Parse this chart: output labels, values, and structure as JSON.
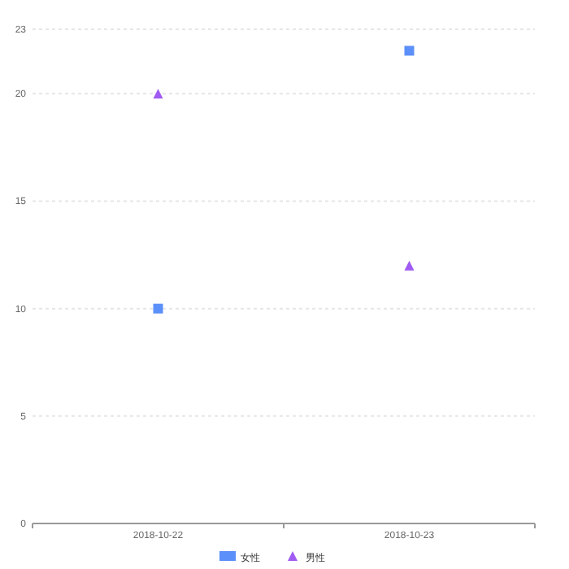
{
  "chart_data": {
    "type": "scatter",
    "categories": [
      "2018-10-22",
      "2018-10-23"
    ],
    "series": [
      {
        "name": "女性",
        "color": "#5b8ff9",
        "marker": "square",
        "values": [
          10,
          22
        ]
      },
      {
        "name": "男性",
        "color": "#a05cf2",
        "marker": "triangle",
        "values": [
          20,
          12
        ]
      }
    ],
    "ylim": [
      0,
      23
    ],
    "yticks": [
      0,
      5,
      10,
      15,
      20,
      23
    ],
    "grid": "y",
    "legend": "bottom"
  }
}
